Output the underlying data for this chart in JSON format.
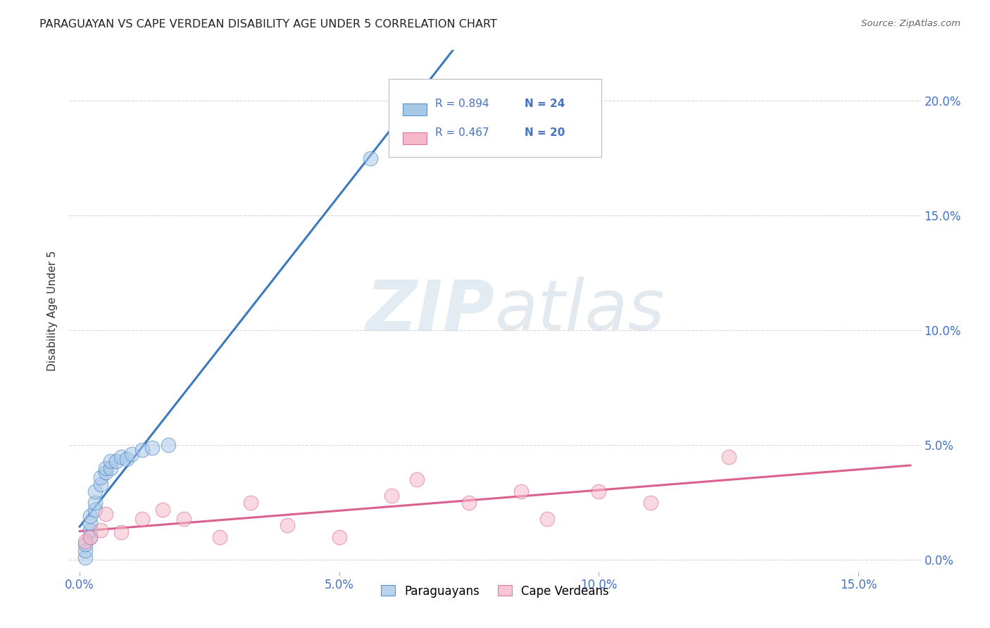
{
  "title": "PARAGUAYAN VS CAPE VERDEAN DISABILITY AGE UNDER 5 CORRELATION CHART",
  "source": "Source: ZipAtlas.com",
  "ylabel": "Disability Age Under 5",
  "xlim": [
    -0.002,
    0.162
  ],
  "ylim": [
    -0.005,
    0.222
  ],
  "x_ticks": [
    0.0,
    0.05,
    0.1,
    0.15
  ],
  "x_tick_labels": [
    "0.0%",
    "5.0%",
    "10.0%",
    "15.0%"
  ],
  "y_ticks": [
    0.0,
    0.05,
    0.1,
    0.15,
    0.2
  ],
  "y_tick_labels": [
    "0.0%",
    "5.0%",
    "10.0%",
    "15.0%",
    "20.0%"
  ],
  "paraguayan_R": 0.894,
  "paraguayan_N": 24,
  "capeverdean_R": 0.467,
  "capeverdean_N": 20,
  "blue_fill": "#a8c8e8",
  "blue_line": "#3a7bbf",
  "pink_fill": "#f5b8c8",
  "pink_line": "#d96090",
  "tick_label_color": "#4472c4",
  "watermark_zip": "ZIP",
  "watermark_atlas": "atlas",
  "background_color": "#ffffff",
  "grid_color": "#cccccc",
  "par_x": [
    0.001,
    0.001,
    0.001,
    0.002,
    0.002,
    0.002,
    0.002,
    0.003,
    0.003,
    0.003,
    0.004,
    0.004,
    0.005,
    0.005,
    0.006,
    0.006,
    0.007,
    0.008,
    0.009,
    0.01,
    0.012,
    0.014,
    0.017,
    0.056
  ],
  "par_y": [
    0.001,
    0.004,
    0.007,
    0.01,
    0.013,
    0.016,
    0.019,
    0.022,
    0.025,
    0.03,
    0.033,
    0.036,
    0.038,
    0.04,
    0.04,
    0.043,
    0.043,
    0.045,
    0.044,
    0.046,
    0.048,
    0.049,
    0.05,
    0.175
  ],
  "cv_x": [
    0.001,
    0.002,
    0.004,
    0.005,
    0.008,
    0.012,
    0.016,
    0.02,
    0.027,
    0.033,
    0.04,
    0.05,
    0.06,
    0.065,
    0.075,
    0.085,
    0.09,
    0.1,
    0.11,
    0.125
  ],
  "cv_y": [
    0.008,
    0.01,
    0.013,
    0.02,
    0.012,
    0.018,
    0.022,
    0.018,
    0.01,
    0.025,
    0.015,
    0.01,
    0.028,
    0.035,
    0.025,
    0.03,
    0.018,
    0.03,
    0.025,
    0.045
  ]
}
